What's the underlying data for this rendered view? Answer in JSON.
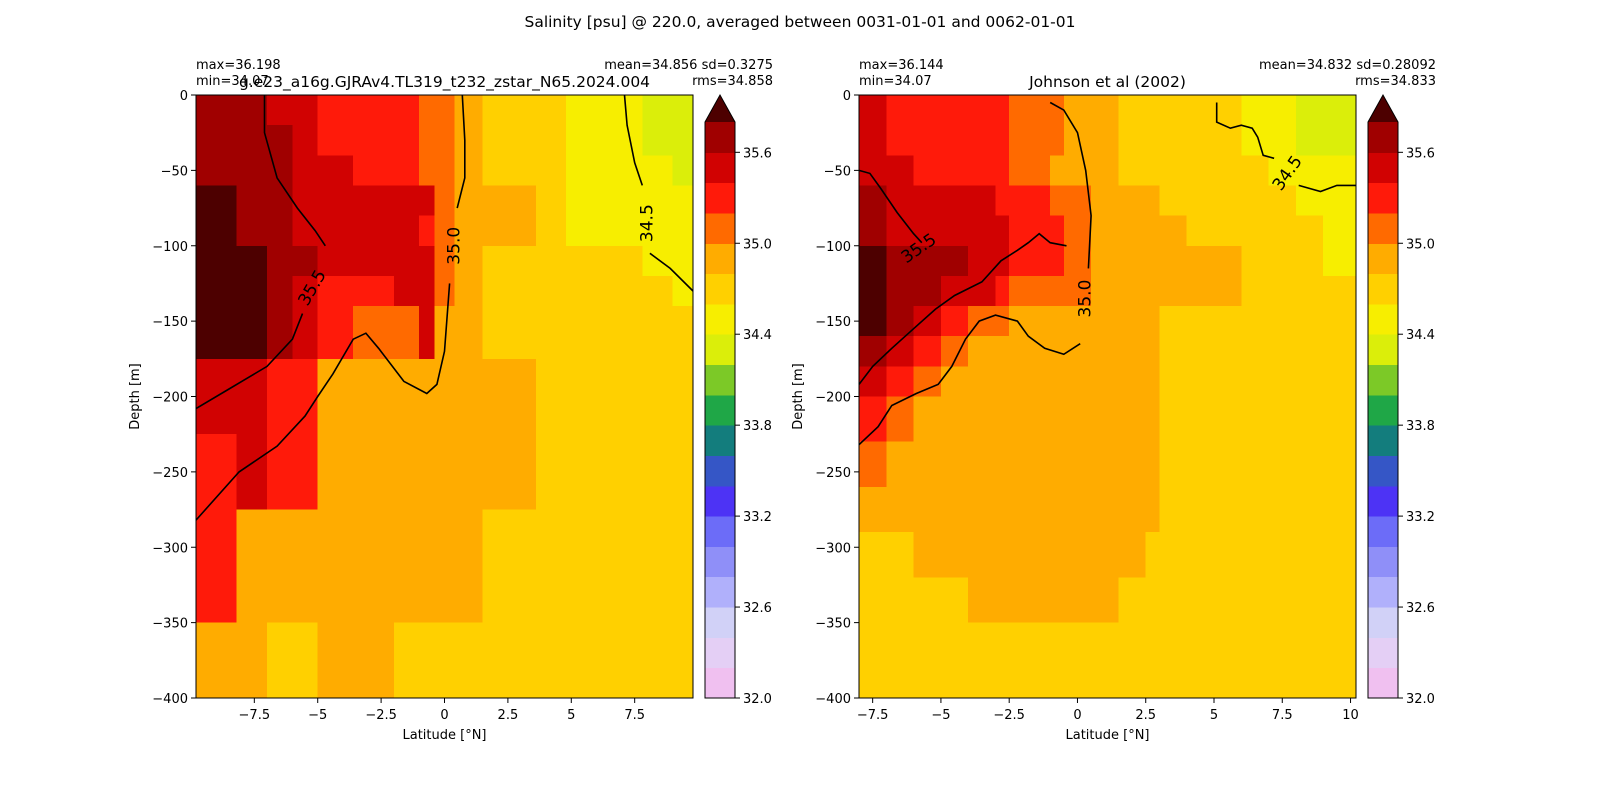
{
  "suptitle": "Salinity [psu] @ 220.0, averaged between 0031-01-01 and 0062-01-01",
  "colorbar": {
    "levels": [
      32.0,
      32.2,
      32.4,
      32.6,
      32.8,
      33.0,
      33.2,
      33.4,
      33.6,
      33.8,
      34.0,
      34.2,
      34.4,
      34.6,
      34.8,
      35.0,
      35.2,
      35.4,
      35.6,
      35.8
    ],
    "colors": [
      "#f0c0f0",
      "#e4cff5",
      "#d1d1f7",
      "#b0b0fb",
      "#8f8ff8",
      "#6c6cf8",
      "#4d33f5",
      "#3556c6",
      "#137d7d",
      "#1fa747",
      "#7cc927",
      "#dbee0a",
      "#f7ee00",
      "#ffd000",
      "#ffac00",
      "#ff6a00",
      "#ff1a0a",
      "#d10202",
      "#a00000",
      "#600000"
    ],
    "extend_color": "#4d0000",
    "extend": "max",
    "tick_labels": [
      "32.0",
      "32.6",
      "33.2",
      "33.8",
      "34.4",
      "35.0",
      "35.6"
    ]
  },
  "chart_data": [
    {
      "type": "heatmap",
      "title": "g.e23_a16g.GJRAv4.TL319_t232_zstar_N65.2024.004",
      "stats_left": [
        "max=36.198",
        "min=34.07"
      ],
      "stats_right": [
        "mean=34.856 sd=0.3275",
        "rms=34.858"
      ],
      "xlabel": "Latitude [°N]",
      "ylabel": "Depth [m]",
      "xlim": [
        -9.8,
        9.8
      ],
      "ylim": [
        -400,
        0
      ],
      "xticks": [
        -7.5,
        -5.0,
        -2.5,
        0.0,
        2.5,
        5.0,
        7.5
      ],
      "yticks": [
        0,
        -50,
        -100,
        -150,
        -200,
        -250,
        -300,
        -350,
        -400
      ],
      "lat_edges": [
        -9.8,
        -8.2,
        -7.0,
        -6.0,
        -5.0,
        -3.6,
        -2.0,
        -1.0,
        -0.4,
        0.4,
        1.5,
        3.6,
        4.8,
        7.8,
        9.0,
        9.8
      ],
      "depth_edges": [
        0,
        -20,
        -40,
        -60,
        -80,
        -100,
        -120,
        -140,
        -175,
        -225,
        -275,
        -350,
        -400
      ],
      "cells": [
        [
          35.7,
          35.7,
          35.5,
          35.5,
          35.3,
          35.3,
          35.3,
          35.1,
          35.1,
          34.9,
          34.7,
          34.7,
          34.5,
          34.3,
          34.3
        ],
        [
          35.7,
          35.7,
          35.7,
          35.5,
          35.3,
          35.3,
          35.3,
          35.1,
          35.1,
          34.9,
          34.7,
          34.7,
          34.5,
          34.3,
          34.3
        ],
        [
          35.7,
          35.7,
          35.7,
          35.5,
          35.5,
          35.3,
          35.3,
          35.1,
          35.1,
          34.9,
          34.7,
          34.7,
          34.5,
          34.5,
          34.3
        ],
        [
          35.9,
          35.7,
          35.7,
          35.5,
          35.5,
          35.5,
          35.5,
          35.5,
          35.1,
          34.9,
          34.9,
          34.7,
          34.5,
          34.5,
          34.5
        ],
        [
          35.9,
          35.7,
          35.7,
          35.5,
          35.5,
          35.5,
          35.5,
          35.3,
          35.1,
          34.9,
          34.9,
          34.7,
          34.5,
          34.5,
          34.5
        ],
        [
          35.9,
          35.9,
          35.7,
          35.7,
          35.5,
          35.5,
          35.5,
          35.5,
          35.1,
          34.9,
          34.7,
          34.7,
          34.7,
          34.5,
          34.5
        ],
        [
          35.9,
          35.9,
          35.7,
          35.5,
          35.3,
          35.3,
          35.5,
          35.5,
          35.1,
          34.9,
          34.7,
          34.7,
          34.7,
          34.7,
          34.5
        ],
        [
          35.9,
          35.9,
          35.7,
          35.5,
          35.3,
          35.1,
          35.1,
          35.5,
          34.9,
          34.9,
          34.7,
          34.7,
          34.7,
          34.7,
          34.7
        ],
        [
          35.5,
          35.5,
          35.3,
          35.3,
          34.9,
          34.9,
          34.9,
          34.9,
          34.9,
          34.9,
          34.9,
          34.7,
          34.7,
          34.7,
          34.7
        ],
        [
          35.3,
          35.5,
          35.3,
          35.3,
          34.9,
          34.9,
          34.9,
          34.9,
          34.9,
          34.9,
          34.9,
          34.7,
          34.7,
          34.7,
          34.7
        ],
        [
          35.3,
          34.9,
          34.9,
          34.9,
          34.9,
          34.9,
          34.9,
          34.9,
          34.9,
          34.9,
          34.7,
          34.7,
          34.7,
          34.7,
          34.7
        ],
        [
          34.9,
          34.9,
          34.7,
          34.7,
          34.9,
          34.9,
          34.7,
          34.7,
          34.7,
          34.7,
          34.7,
          34.7,
          34.7,
          34.7,
          34.7
        ],
        [
          34.7,
          34.7,
          34.7,
          34.7,
          34.7,
          34.7,
          34.7,
          34.7,
          34.7,
          34.7,
          34.7,
          34.7,
          34.7,
          34.7,
          34.7
        ]
      ],
      "contours": [
        {
          "level": "35.5",
          "points": [
            [
              -7.1,
              0
            ],
            [
              -7.1,
              -25
            ],
            [
              -6.6,
              -55
            ],
            [
              -5.8,
              -75
            ],
            [
              -5.1,
              -90
            ],
            [
              -4.7,
              -100
            ]
          ],
          "label_at": [
            -5.2,
            -128
          ],
          "label_angle": -60
        },
        {
          "level": "35.5",
          "points": [
            [
              -9.8,
              -208
            ],
            [
              -8.5,
              -195
            ],
            [
              -7.0,
              -180
            ],
            [
              -6.0,
              -162
            ],
            [
              -5.6,
              -145
            ]
          ]
        },
        {
          "level": "35.0",
          "points": [
            [
              0.7,
              0
            ],
            [
              0.8,
              -30
            ],
            [
              0.8,
              -55
            ],
            [
              0.5,
              -75
            ]
          ],
          "label_at": [
            0.4,
            -100
          ],
          "label_angle": -90
        },
        {
          "level": "35.0",
          "points": [
            [
              0.2,
              -125
            ],
            [
              0.0,
              -170
            ],
            [
              -0.3,
              -192
            ],
            [
              -0.7,
              -198
            ],
            [
              -1.6,
              -190
            ],
            [
              -2.6,
              -168
            ],
            [
              -3.1,
              -158
            ],
            [
              -3.6,
              -162
            ],
            [
              -4.4,
              -185
            ],
            [
              -5.0,
              -200
            ],
            [
              -5.5,
              -213
            ],
            [
              -6.6,
              -233
            ],
            [
              -8.1,
              -250
            ],
            [
              -9.8,
              -282
            ]
          ]
        },
        {
          "level": "34.5",
          "points": [
            [
              7.1,
              0
            ],
            [
              7.2,
              -20
            ],
            [
              7.5,
              -45
            ],
            [
              7.8,
              -60
            ]
          ],
          "label_at": [
            8.0,
            -85
          ],
          "label_angle": -90
        },
        {
          "level": "34.5",
          "points": [
            [
              8.1,
              -105
            ],
            [
              8.9,
              -115
            ],
            [
              9.8,
              -130
            ]
          ]
        }
      ]
    },
    {
      "type": "heatmap",
      "title": "Johnson et al (2002)",
      "stats_left": [
        "max=36.144",
        "min=34.07"
      ],
      "stats_right": [
        "mean=34.832 sd=0.28092",
        "rms=34.833"
      ],
      "xlabel": "Latitude [°N]",
      "ylabel": "Depth [m]",
      "xlim": [
        -8.0,
        10.2
      ],
      "ylim": [
        -400,
        0
      ],
      "xticks": [
        -7.5,
        -5.0,
        -2.5,
        0.0,
        2.5,
        5.0,
        7.5,
        10.0
      ],
      "yticks": [
        0,
        -50,
        -100,
        -150,
        -200,
        -250,
        -300,
        -350,
        -400
      ],
      "lat_edges": [
        -8.0,
        -7.0,
        -6.0,
        -5.0,
        -4.0,
        -3.0,
        -2.5,
        -1.0,
        -0.5,
        0.5,
        1.5,
        2.5,
        3.0,
        4.0,
        5.0,
        6.0,
        7.0,
        8.0,
        9.0,
        10.2
      ],
      "depth_edges": [
        0,
        -20,
        -40,
        -60,
        -80,
        -100,
        -120,
        -140,
        -160,
        -180,
        -200,
        -230,
        -260,
        -290,
        -320,
        -350,
        -400
      ],
      "cells": [
        [
          35.5,
          35.3,
          35.3,
          35.3,
          35.3,
          35.3,
          35.1,
          35.1,
          34.9,
          34.9,
          34.7,
          34.7,
          34.7,
          34.7,
          34.7,
          34.5,
          34.5,
          34.3,
          34.3
        ],
        [
          35.5,
          35.3,
          35.3,
          35.3,
          35.3,
          35.3,
          35.1,
          35.1,
          34.9,
          34.9,
          34.7,
          34.7,
          34.7,
          34.7,
          34.7,
          34.5,
          34.5,
          34.3,
          34.3
        ],
        [
          35.5,
          35.5,
          35.3,
          35.3,
          35.3,
          35.3,
          35.1,
          34.9,
          34.9,
          34.9,
          34.7,
          34.7,
          34.7,
          34.7,
          34.7,
          34.7,
          34.5,
          34.5,
          34.5
        ],
        [
          35.7,
          35.5,
          35.5,
          35.5,
          35.5,
          35.3,
          35.3,
          35.1,
          35.1,
          34.9,
          34.9,
          34.9,
          34.7,
          34.7,
          34.7,
          34.7,
          34.7,
          34.5,
          34.5
        ],
        [
          35.7,
          35.5,
          35.5,
          35.5,
          35.5,
          35.5,
          35.3,
          35.3,
          35.1,
          34.9,
          34.9,
          34.9,
          34.9,
          34.7,
          34.7,
          34.7,
          34.7,
          34.7,
          34.5
        ],
        [
          35.9,
          35.7,
          35.7,
          35.7,
          35.5,
          35.5,
          35.3,
          35.3,
          35.1,
          34.9,
          34.9,
          34.9,
          34.9,
          34.9,
          34.9,
          34.7,
          34.7,
          34.7,
          34.5
        ],
        [
          35.9,
          35.7,
          35.7,
          35.5,
          35.5,
          35.3,
          35.1,
          35.1,
          35.1,
          34.9,
          34.9,
          34.9,
          34.9,
          34.9,
          34.9,
          34.7,
          34.7,
          34.7,
          34.7
        ],
        [
          35.9,
          35.7,
          35.5,
          35.3,
          35.1,
          35.1,
          34.9,
          34.9,
          34.9,
          34.9,
          34.9,
          34.9,
          34.7,
          34.7,
          34.7,
          34.7,
          34.7,
          34.7,
          34.7
        ],
        [
          35.7,
          35.5,
          35.3,
          35.1,
          34.9,
          34.9,
          34.9,
          34.9,
          34.9,
          34.9,
          34.9,
          34.9,
          34.7,
          34.7,
          34.7,
          34.7,
          34.7,
          34.7,
          34.7
        ],
        [
          35.5,
          35.3,
          35.1,
          34.9,
          34.9,
          34.9,
          34.9,
          34.9,
          34.9,
          34.9,
          34.9,
          34.9,
          34.7,
          34.7,
          34.7,
          34.7,
          34.7,
          34.7,
          34.7
        ],
        [
          35.3,
          35.1,
          34.9,
          34.9,
          34.9,
          34.9,
          34.9,
          34.9,
          34.9,
          34.9,
          34.9,
          34.9,
          34.7,
          34.7,
          34.7,
          34.7,
          34.7,
          34.7,
          34.7
        ],
        [
          35.1,
          34.9,
          34.9,
          34.9,
          34.9,
          34.9,
          34.9,
          34.9,
          34.9,
          34.9,
          34.9,
          34.9,
          34.7,
          34.7,
          34.7,
          34.7,
          34.7,
          34.7,
          34.7
        ],
        [
          34.9,
          34.9,
          34.9,
          34.9,
          34.9,
          34.9,
          34.9,
          34.9,
          34.9,
          34.9,
          34.9,
          34.9,
          34.7,
          34.7,
          34.7,
          34.7,
          34.7,
          34.7,
          34.7
        ],
        [
          34.7,
          34.7,
          34.9,
          34.9,
          34.9,
          34.9,
          34.9,
          34.9,
          34.9,
          34.9,
          34.9,
          34.7,
          34.7,
          34.7,
          34.7,
          34.7,
          34.7,
          34.7,
          34.7
        ],
        [
          34.7,
          34.7,
          34.7,
          34.7,
          34.9,
          34.9,
          34.9,
          34.9,
          34.9,
          34.9,
          34.7,
          34.7,
          34.7,
          34.7,
          34.7,
          34.7,
          34.7,
          34.7,
          34.7
        ],
        [
          34.7,
          34.7,
          34.7,
          34.7,
          34.7,
          34.7,
          34.7,
          34.7,
          34.7,
          34.7,
          34.7,
          34.7,
          34.7,
          34.7,
          34.7,
          34.7,
          34.7,
          34.7,
          34.7
        ]
      ],
      "contours": [
        {
          "level": "35.5",
          "points": [
            [
              -8.0,
              -50
            ],
            [
              -7.6,
              -52
            ],
            [
              -7.2,
              -62
            ],
            [
              -6.6,
              -78
            ],
            [
              -6.0,
              -92
            ],
            [
              -5.7,
              -98
            ]
          ]
        },
        {
          "level": "35.5",
          "points": [
            [
              -8.0,
              -192
            ],
            [
              -7.5,
              -180
            ],
            [
              -6.8,
              -168
            ],
            [
              -6.0,
              -155
            ],
            [
              -5.2,
              -142
            ],
            [
              -4.5,
              -133
            ],
            [
              -3.5,
              -124
            ],
            [
              -2.8,
              -110
            ],
            [
              -2.2,
              -103
            ],
            [
              -1.8,
              -98
            ],
            [
              -1.4,
              -92
            ],
            [
              -1.0,
              -98
            ],
            [
              -0.4,
              -100
            ]
          ],
          "label_at": [
            -5.8,
            -102
          ],
          "label_angle": -35
        },
        {
          "level": "35.0",
          "points": [
            [
              -1.0,
              -5
            ],
            [
              -0.5,
              -10
            ],
            [
              0.0,
              -25
            ],
            [
              0.3,
              -50
            ],
            [
              0.5,
              -80
            ],
            [
              0.4,
              -115
            ]
          ],
          "label_at": [
            0.3,
            -135
          ],
          "label_angle": -90
        },
        {
          "level": "35.0",
          "points": [
            [
              0.1,
              -165
            ],
            [
              -0.5,
              -172
            ],
            [
              -1.2,
              -168
            ],
            [
              -1.8,
              -160
            ],
            [
              -2.2,
              -150
            ],
            [
              -3.0,
              -146
            ],
            [
              -3.6,
              -150
            ],
            [
              -4.1,
              -162
            ],
            [
              -4.6,
              -180
            ],
            [
              -5.1,
              -192
            ],
            [
              -5.9,
              -198
            ],
            [
              -6.8,
              -206
            ],
            [
              -7.3,
              -220
            ],
            [
              -8.0,
              -232
            ]
          ]
        },
        {
          "level": "34.5",
          "points": [
            [
              5.1,
              -5
            ],
            [
              5.1,
              -18
            ],
            [
              5.6,
              -22
            ],
            [
              6.0,
              -20
            ],
            [
              6.4,
              -22
            ],
            [
              6.6,
              -28
            ],
            [
              6.8,
              -40
            ],
            [
              7.2,
              -42
            ]
          ],
          "label_at": [
            7.7,
            -52
          ],
          "label_angle": -55
        },
        {
          "level": "34.5",
          "points": [
            [
              8.1,
              -60
            ],
            [
              8.9,
              -64
            ],
            [
              9.5,
              -60
            ],
            [
              10.2,
              -60
            ]
          ]
        }
      ]
    }
  ]
}
